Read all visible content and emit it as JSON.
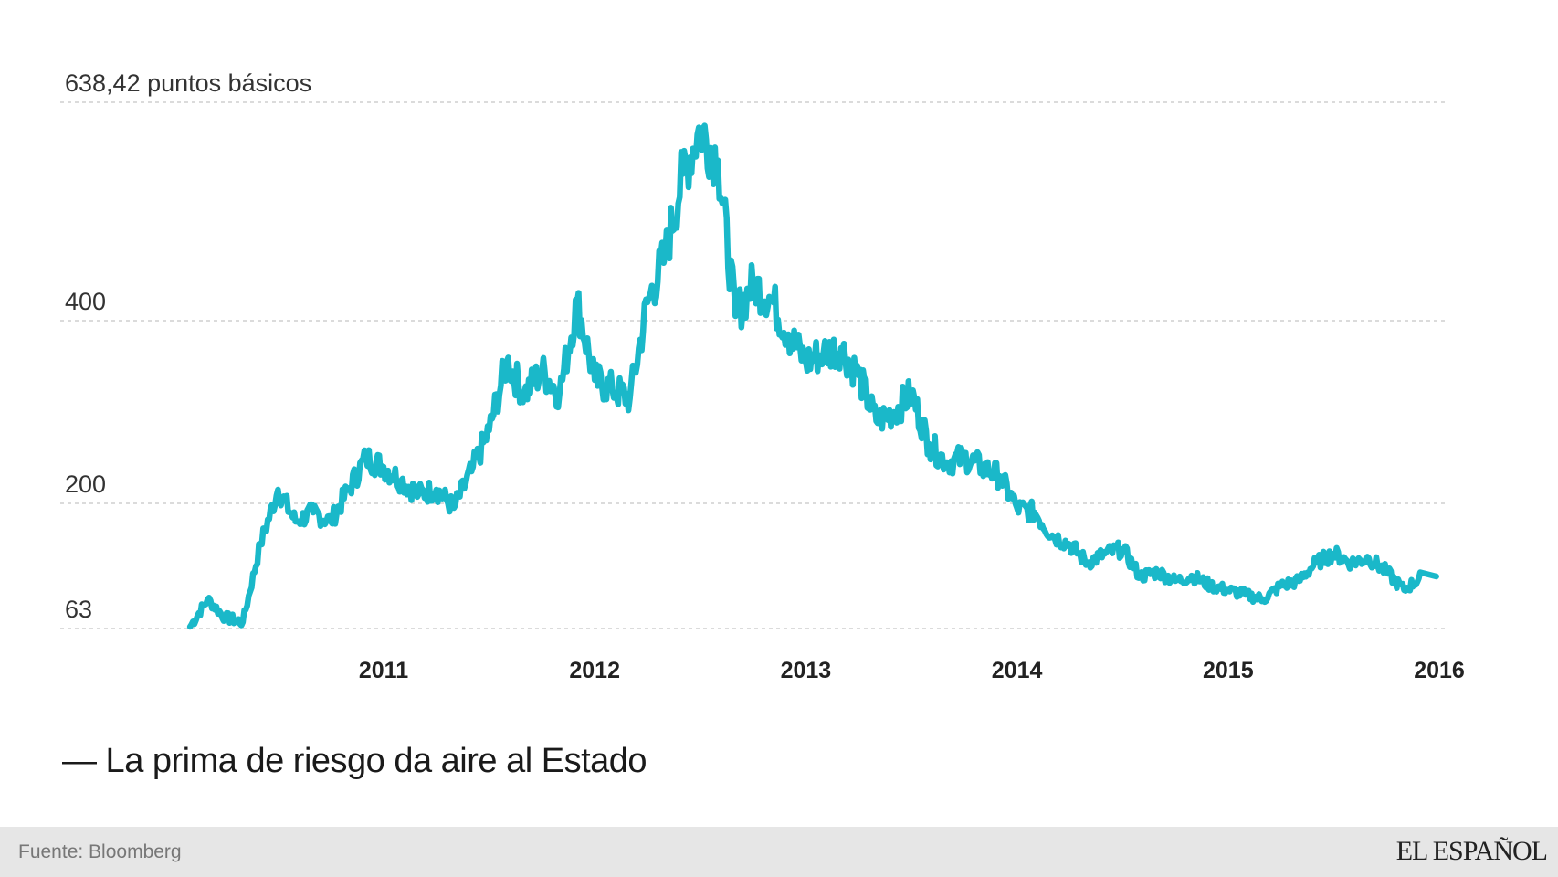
{
  "chart_data": {
    "type": "line",
    "title": "— La prima de riesgo da aire al Estado",
    "y_top_label": "638,42 puntos básicos",
    "yticks": [
      400,
      200,
      63
    ],
    "yticks_labels": [
      "400",
      "200",
      "63"
    ],
    "ylim": [
      63,
      638.42
    ],
    "xlim": [
      "2010-02-01",
      "2016-01-01"
    ],
    "xticks": [
      "2011",
      "2012",
      "2013",
      "2014",
      "2015",
      "2016"
    ],
    "grid": true,
    "line_color": "#1ab8c9",
    "series": [
      {
        "x": [
          "2010-02",
          "2010-03",
          "2010-04",
          "2010-05",
          "2010-06",
          "2010-07",
          "2010-08",
          "2010-09",
          "2010-10",
          "2010-11",
          "2010-12",
          "2011-01",
          "2011-02",
          "2011-03",
          "2011-04",
          "2011-05",
          "2011-06",
          "2011-07",
          "2011-08",
          "2011-09",
          "2011-10",
          "2011-11",
          "2011-12",
          "2012-01",
          "2012-02",
          "2012-03",
          "2012-04",
          "2012-05",
          "2012-06",
          "2012-07",
          "2012-08",
          "2012-09",
          "2012-10",
          "2012-11",
          "2012-12",
          "2013-01",
          "2013-02",
          "2013-03",
          "2013-04",
          "2013-05",
          "2013-06",
          "2013-07",
          "2013-08",
          "2013-09",
          "2013-10",
          "2013-11",
          "2013-12",
          "2014-01",
          "2014-02",
          "2014-03",
          "2014-04",
          "2014-05",
          "2014-06",
          "2014-07",
          "2014-08",
          "2014-09",
          "2014-10",
          "2014-11",
          "2014-12",
          "2015-01",
          "2015-02",
          "2015-03",
          "2015-04",
          "2015-05",
          "2015-06",
          "2015-07",
          "2015-08",
          "2015-09",
          "2015-10",
          "2015-11",
          "2015-12"
        ],
        "values": [
          65,
          95,
          75,
          70,
          155,
          215,
          180,
          190,
          180,
          215,
          250,
          240,
          225,
          210,
          215,
          195,
          235,
          280,
          355,
          320,
          345,
          320,
          420,
          335,
          325,
          315,
          420,
          470,
          560,
          610,
          575,
          405,
          440,
          425,
          385,
          355,
          365,
          370,
          340,
          290,
          300,
          320,
          265,
          245,
          250,
          240,
          230,
          195,
          190,
          165,
          155,
          135,
          145,
          150,
          120,
          125,
          115,
          120,
          110,
          105,
          100,
          95,
          110,
          115,
          135,
          145,
          135,
          140,
          125,
          105,
          120
        ]
      }
    ]
  },
  "footer": {
    "source": "Fuente: Bloomberg",
    "brand": "EL ESPAÑOL"
  }
}
